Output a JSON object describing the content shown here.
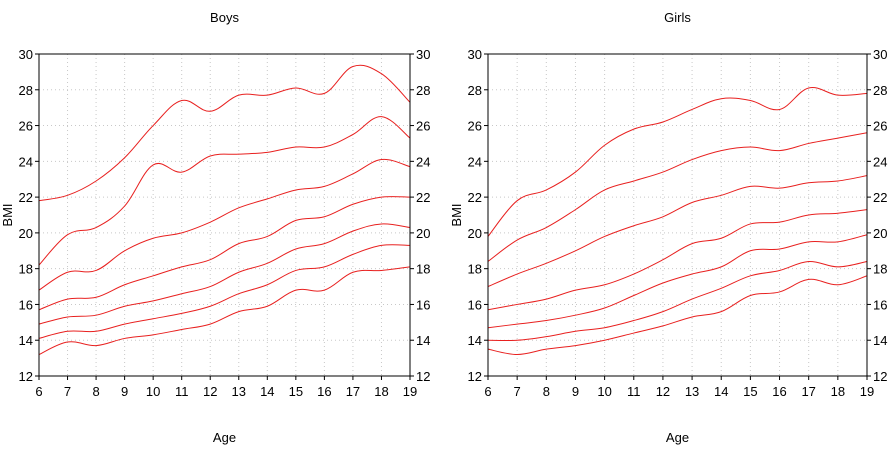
{
  "chart_data": [
    {
      "type": "line",
      "title": "Boys",
      "xlabel": "Age",
      "ylabel": "BMI",
      "xlim": [
        6,
        19
      ],
      "ylim": [
        12,
        30
      ],
      "xticks": [
        6,
        7,
        8,
        9,
        10,
        11,
        12,
        13,
        14,
        15,
        16,
        17,
        18,
        19
      ],
      "yticks": [
        12,
        14,
        16,
        18,
        20,
        22,
        24,
        26,
        28,
        30
      ],
      "grid": true,
      "line_color": "#e8201f",
      "series": [
        {
          "x": [
            6,
            7,
            8,
            9,
            10,
            11,
            12,
            13,
            14,
            15,
            16,
            17,
            18,
            19
          ],
          "y": [
            13.2,
            13.9,
            13.7,
            14.1,
            14.3,
            14.6,
            14.9,
            15.6,
            15.9,
            16.8,
            16.8,
            17.8,
            17.9,
            18.1
          ]
        },
        {
          "x": [
            6,
            7,
            8,
            9,
            10,
            11,
            12,
            13,
            14,
            15,
            16,
            17,
            18,
            19
          ],
          "y": [
            14.1,
            14.5,
            14.5,
            14.9,
            15.2,
            15.5,
            15.9,
            16.6,
            17.1,
            17.9,
            18.1,
            18.8,
            19.3,
            19.3
          ]
        },
        {
          "x": [
            6,
            7,
            8,
            9,
            10,
            11,
            12,
            13,
            14,
            15,
            16,
            17,
            18,
            19
          ],
          "y": [
            14.9,
            15.3,
            15.4,
            15.9,
            16.2,
            16.6,
            17.0,
            17.8,
            18.3,
            19.1,
            19.4,
            20.1,
            20.5,
            20.3
          ]
        },
        {
          "x": [
            6,
            7,
            8,
            9,
            10,
            11,
            12,
            13,
            14,
            15,
            16,
            17,
            18,
            19
          ],
          "y": [
            15.7,
            16.3,
            16.4,
            17.1,
            17.6,
            18.1,
            18.5,
            19.4,
            19.8,
            20.7,
            20.9,
            21.6,
            22.0,
            22.0
          ]
        },
        {
          "x": [
            6,
            7,
            8,
            9,
            10,
            11,
            12,
            13,
            14,
            15,
            16,
            17,
            18,
            19
          ],
          "y": [
            16.8,
            17.8,
            17.9,
            19.0,
            19.7,
            20.0,
            20.6,
            21.4,
            21.9,
            22.4,
            22.6,
            23.3,
            24.1,
            23.7
          ]
        },
        {
          "x": [
            6,
            7,
            8,
            9,
            10,
            11,
            12,
            13,
            14,
            15,
            16,
            17,
            18,
            19
          ],
          "y": [
            18.2,
            19.9,
            20.3,
            21.5,
            23.8,
            23.4,
            24.3,
            24.4,
            24.5,
            24.8,
            24.8,
            25.5,
            26.5,
            25.3
          ]
        },
        {
          "x": [
            6,
            7,
            8,
            9,
            10,
            11,
            12,
            13,
            14,
            15,
            16,
            17,
            18,
            19
          ],
          "y": [
            21.8,
            22.1,
            22.9,
            24.2,
            26.0,
            27.4,
            26.8,
            27.7,
            27.7,
            28.1,
            27.8,
            29.3,
            28.9,
            27.3
          ]
        }
      ]
    },
    {
      "type": "line",
      "title": "Girls",
      "xlabel": "Age",
      "ylabel": "BMI",
      "xlim": [
        6,
        19
      ],
      "ylim": [
        12,
        30
      ],
      "xticks": [
        6,
        7,
        8,
        9,
        10,
        11,
        12,
        13,
        14,
        15,
        16,
        17,
        18,
        19
      ],
      "yticks": [
        12,
        14,
        16,
        18,
        20,
        22,
        24,
        26,
        28,
        30
      ],
      "grid": true,
      "line_color": "#e8201f",
      "series": [
        {
          "x": [
            6,
            7,
            8,
            9,
            10,
            11,
            12,
            13,
            14,
            15,
            16,
            17,
            18,
            19
          ],
          "y": [
            13.5,
            13.2,
            13.5,
            13.7,
            14.0,
            14.4,
            14.8,
            15.3,
            15.6,
            16.5,
            16.7,
            17.4,
            17.1,
            17.6
          ]
        },
        {
          "x": [
            6,
            7,
            8,
            9,
            10,
            11,
            12,
            13,
            14,
            15,
            16,
            17,
            18,
            19
          ],
          "y": [
            14.0,
            14.0,
            14.2,
            14.5,
            14.7,
            15.1,
            15.6,
            16.3,
            16.9,
            17.6,
            17.9,
            18.4,
            18.1,
            18.4
          ]
        },
        {
          "x": [
            6,
            7,
            8,
            9,
            10,
            11,
            12,
            13,
            14,
            15,
            16,
            17,
            18,
            19
          ],
          "y": [
            14.7,
            14.9,
            15.1,
            15.4,
            15.8,
            16.5,
            17.2,
            17.7,
            18.1,
            19.0,
            19.1,
            19.5,
            19.5,
            19.9
          ]
        },
        {
          "x": [
            6,
            7,
            8,
            9,
            10,
            11,
            12,
            13,
            14,
            15,
            16,
            17,
            18,
            19
          ],
          "y": [
            15.7,
            16.0,
            16.3,
            16.8,
            17.1,
            17.7,
            18.5,
            19.4,
            19.7,
            20.5,
            20.6,
            21.0,
            21.1,
            21.3
          ]
        },
        {
          "x": [
            6,
            7,
            8,
            9,
            10,
            11,
            12,
            13,
            14,
            15,
            16,
            17,
            18,
            19
          ],
          "y": [
            17.0,
            17.7,
            18.3,
            19.0,
            19.8,
            20.4,
            20.9,
            21.7,
            22.1,
            22.6,
            22.5,
            22.8,
            22.9,
            23.2
          ]
        },
        {
          "x": [
            6,
            7,
            8,
            9,
            10,
            11,
            12,
            13,
            14,
            15,
            16,
            17,
            18,
            19
          ],
          "y": [
            18.4,
            19.6,
            20.3,
            21.3,
            22.4,
            22.9,
            23.4,
            24.1,
            24.6,
            24.8,
            24.6,
            25.0,
            25.3,
            25.6
          ]
        },
        {
          "x": [
            6,
            7,
            8,
            9,
            10,
            11,
            12,
            13,
            14,
            15,
            16,
            17,
            18,
            19
          ],
          "y": [
            19.8,
            21.8,
            22.4,
            23.4,
            24.9,
            25.8,
            26.2,
            26.9,
            27.5,
            27.4,
            26.9,
            28.1,
            27.7,
            27.8
          ]
        }
      ]
    }
  ]
}
